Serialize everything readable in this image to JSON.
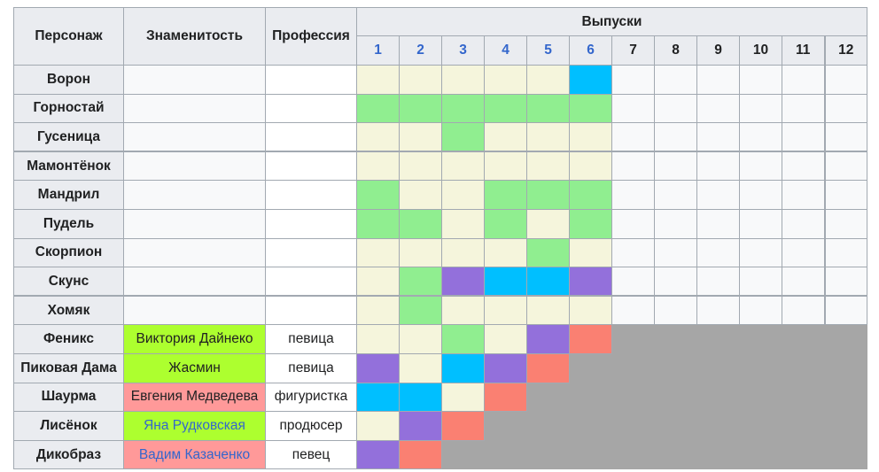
{
  "header": {
    "character": "Персонаж",
    "celebrity": "Знаменитость",
    "profession": "Профессия",
    "episodes_title": "Выпуски",
    "episodes": [
      "1",
      "2",
      "3",
      "4",
      "5",
      "6",
      "7",
      "8",
      "9",
      "10",
      "11",
      "12"
    ],
    "episodes_linked": 6
  },
  "colors": {
    "safe": "#f5f5dc",
    "top": "#90ee90",
    "risk": "#9370db",
    "bottom": "#00bfff",
    "out": "#fa8072",
    "future": "#f8f9fa",
    "eliminated": "#a6a6a6",
    "celeb_green": "#adff2f",
    "celeb_pink": "#ff9999"
  },
  "rows": [
    {
      "character": "Ворон",
      "celebrity": "",
      "profession": "",
      "results": [
        "safe",
        "safe",
        "safe",
        "safe",
        "safe",
        "bottom",
        "future",
        "future",
        "future",
        "future",
        "future",
        "future"
      ]
    },
    {
      "character": "Горностай",
      "celebrity": "",
      "profession": "",
      "results": [
        "top",
        "top",
        "top",
        "top",
        "top",
        "top",
        "future",
        "future",
        "future",
        "future",
        "future",
        "future"
      ]
    },
    {
      "character": "Гусеница",
      "celebrity": "",
      "profession": "",
      "results": [
        "safe",
        "safe",
        "top",
        "safe",
        "safe",
        "safe",
        "future",
        "future",
        "future",
        "future",
        "future",
        "future"
      ]
    },
    {
      "character": "Мамонтёнок",
      "celebrity": "",
      "profession": "",
      "results": [
        "safe",
        "safe",
        "safe",
        "safe",
        "safe",
        "safe",
        "future",
        "future",
        "future",
        "future",
        "future",
        "future"
      ]
    },
    {
      "character": "Мандрил",
      "celebrity": "",
      "profession": "",
      "results": [
        "top",
        "safe",
        "safe",
        "top",
        "top",
        "top",
        "future",
        "future",
        "future",
        "future",
        "future",
        "future"
      ]
    },
    {
      "character": "Пудель",
      "celebrity": "",
      "profession": "",
      "results": [
        "top",
        "top",
        "safe",
        "top",
        "safe",
        "top",
        "future",
        "future",
        "future",
        "future",
        "future",
        "future"
      ]
    },
    {
      "character": "Скорпион",
      "celebrity": "",
      "profession": "",
      "results": [
        "safe",
        "safe",
        "safe",
        "safe",
        "top",
        "safe",
        "future",
        "future",
        "future",
        "future",
        "future",
        "future"
      ]
    },
    {
      "character": "Скунс",
      "celebrity": "",
      "profession": "",
      "results": [
        "safe",
        "top",
        "risk",
        "bottom",
        "bottom",
        "risk",
        "future",
        "future",
        "future",
        "future",
        "future",
        "future"
      ]
    },
    {
      "character": "Хомяк",
      "celebrity": "",
      "profession": "",
      "results": [
        "safe",
        "top",
        "safe",
        "safe",
        "safe",
        "safe",
        "future",
        "future",
        "future",
        "future",
        "future",
        "future"
      ]
    },
    {
      "character": "Феникс",
      "celebrity": "Виктория Дайнеко",
      "celeb_color": "celeb_green",
      "celeb_link": false,
      "profession": "певица",
      "results": [
        "safe",
        "safe",
        "top",
        "safe",
        "risk",
        "out"
      ],
      "elim_from": 6
    },
    {
      "character": "Пиковая Дама",
      "celebrity": "Жасмин",
      "celeb_color": "celeb_green",
      "celeb_link": false,
      "profession": "певица",
      "results": [
        "risk",
        "safe",
        "bottom",
        "risk",
        "out"
      ],
      "elim_from": 5
    },
    {
      "character": "Шаурма",
      "celebrity": "Евгения Медведева",
      "celeb_color": "celeb_pink",
      "celeb_link": false,
      "profession": "фигуристка",
      "results": [
        "bottom",
        "bottom",
        "safe",
        "out"
      ],
      "elim_from": 4
    },
    {
      "character": "Лисёнок",
      "celebrity": "Яна Рудковская",
      "celeb_color": "celeb_green",
      "celeb_link": true,
      "profession": "продюсер",
      "results": [
        "safe",
        "risk",
        "out"
      ],
      "elim_from": 3
    },
    {
      "character": "Дикобраз",
      "celebrity": "Вадим Казаченко",
      "celeb_color": "celeb_pink",
      "celeb_link": true,
      "profession": "певец",
      "results": [
        "risk",
        "out"
      ],
      "elim_from": 2
    }
  ]
}
